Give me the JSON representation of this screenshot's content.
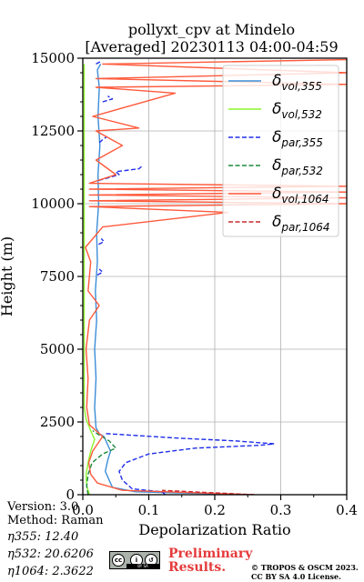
{
  "title_line1": "pollyxt_cpv at Mindelo",
  "title_line2": "[Averaged] 20230113 04:00-04:59",
  "footer": {
    "version": "Version: 3.0",
    "method": "Method: Raman",
    "eta355": "η355:  12.40",
    "eta532": "η532: 20.6206",
    "eta1064": "η1064: 2.3622",
    "preliminary": "Preliminary Results.",
    "copyright_line1": "© TROPOS & OSCM 2023.",
    "copyright_line2": "CC BY SA 4.0 License."
  },
  "cc_logo": {
    "badge1": "cc",
    "badge2": "i",
    "badge3": "↺",
    "strip": "BY  SA"
  },
  "chart_data": {
    "type": "line",
    "xlabel": "Depolarization Ratio",
    "ylabel": "Height (m)",
    "xlim": [
      0,
      0.4
    ],
    "ylim": [
      0,
      15000
    ],
    "xticks": [
      0.0,
      0.1,
      0.2,
      0.3,
      0.4
    ],
    "xtick_labels": [
      "0.0",
      "0.1",
      "0.2",
      "0.3",
      "0.4"
    ],
    "yticks": [
      0,
      2500,
      5000,
      7500,
      10000,
      12500,
      15000
    ],
    "ytick_labels": [
      "0",
      "2500",
      "5000",
      "7500",
      "10000",
      "12500",
      "15000"
    ],
    "grid": true,
    "legend_position": "upper-right",
    "series": [
      {
        "name": "δvol,355",
        "base": "δ",
        "sub": "vol,355",
        "color": "#3c8dd8",
        "dash": "solid",
        "points": [
          [
            0.255,
            0
          ],
          [
            0.08,
            100
          ],
          [
            0.045,
            250
          ],
          [
            0.04,
            500
          ],
          [
            0.034,
            800
          ],
          [
            0.038,
            1200
          ],
          [
            0.042,
            1500
          ],
          [
            0.032,
            2000
          ],
          [
            0.025,
            2100
          ],
          [
            0.02,
            2300
          ],
          [
            0.018,
            3000
          ],
          [
            0.02,
            4000
          ],
          [
            0.018,
            5000
          ],
          [
            0.021,
            6000
          ],
          [
            0.019,
            7000
          ],
          [
            0.022,
            8000
          ],
          [
            0.021,
            9000
          ],
          [
            0.024,
            10000
          ],
          [
            0.023,
            11000
          ],
          [
            0.026,
            12000
          ],
          [
            0.023,
            13000
          ],
          [
            0.025,
            14000
          ],
          [
            0.022,
            14600
          ],
          [
            0.027,
            14800
          ]
        ]
      },
      {
        "name": "δvol,532",
        "base": "δ",
        "sub": "vol,532",
        "color": "#8cf52a",
        "dash": "solid",
        "points": [
          [
            0.01,
            0
          ],
          [
            0.006,
            300
          ],
          [
            0.005,
            700
          ],
          [
            0.008,
            1100
          ],
          [
            0.012,
            1500
          ],
          [
            0.018,
            1900
          ],
          [
            0.012,
            2200
          ],
          [
            0.005,
            2600
          ],
          [
            0.002,
            3000
          ],
          [
            0.002,
            6000
          ],
          [
            0.002,
            9000
          ],
          [
            0.002,
            12000
          ],
          [
            0.002,
            14800
          ]
        ]
      },
      {
        "name": "δpar,355",
        "base": "δ",
        "sub": "par,355",
        "color": "#1f2ee8",
        "dash": "dashed",
        "points": [
          [
            0.125,
            0
          ],
          [
            0.12,
            100
          ],
          [
            0.075,
            200
          ],
          [
            0.06,
            500
          ],
          [
            0.055,
            800
          ],
          [
            0.065,
            1100
          ],
          [
            0.1,
            1400
          ],
          [
            0.17,
            1600
          ],
          [
            0.27,
            1700
          ],
          [
            0.29,
            1750
          ],
          [
            0.23,
            1850
          ],
          [
            0.14,
            1950
          ],
          [
            0.07,
            2050
          ],
          [
            0.035,
            2100
          ]
        ],
        "segments": [
          [
            [
              0.024,
              8600
            ],
            [
              0.032,
              8700
            ],
            [
              0.028,
              8800
            ]
          ],
          [
            [
              0.022,
              7550
            ],
            [
              0.03,
              7650
            ],
            [
              0.025,
              7750
            ]
          ],
          [
            [
              0.024,
              10800
            ],
            [
              0.04,
              10900
            ],
            [
              0.055,
              11000
            ],
            [
              0.05,
              11100
            ],
            [
              0.085,
              11200
            ],
            [
              0.09,
              11300
            ]
          ],
          [
            [
              0.025,
              12100
            ],
            [
              0.03,
              12200
            ],
            [
              0.036,
              12300
            ]
          ],
          [
            [
              0.03,
              13500
            ],
            [
              0.045,
              13600
            ],
            [
              0.038,
              13700
            ]
          ],
          [
            [
              0.02,
              14800
            ],
            [
              0.028,
              14900
            ]
          ]
        ]
      },
      {
        "name": "δpar,532",
        "base": "δ",
        "sub": "par,532",
        "color": "#1d8a3c",
        "dash": "dashed",
        "points": [
          [
            0.008,
            0
          ],
          [
            0.006,
            300
          ],
          [
            0.008,
            700
          ],
          [
            0.014,
            1100
          ],
          [
            0.03,
            1400
          ],
          [
            0.05,
            1600
          ],
          [
            0.04,
            1850
          ],
          [
            0.025,
            2050
          ],
          [
            0.015,
            2200
          ]
        ]
      },
      {
        "name": "δvol,1064",
        "base": "δ",
        "sub": "vol,1064",
        "color": "#ff5a3c",
        "dash": "solid",
        "points": [
          [
            0.26,
            0
          ],
          [
            0.06,
            150
          ],
          [
            0.022,
            400
          ],
          [
            0.012,
            700
          ],
          [
            0.009,
            1100
          ],
          [
            0.015,
            1500
          ],
          [
            0.03,
            2000
          ],
          [
            0.01,
            2400
          ],
          [
            0.006,
            3000
          ],
          [
            0.008,
            4000
          ],
          [
            0.005,
            5000
          ],
          [
            0.01,
            6000
          ],
          [
            0.025,
            6500
          ],
          [
            0.008,
            7000
          ],
          [
            0.012,
            8000
          ],
          [
            0.004,
            8500
          ],
          [
            0.03,
            9200
          ],
          [
            0.22,
            9700
          ],
          [
            0.01,
            9900
          ],
          [
            0.4,
            10000
          ],
          [
            0.01,
            10100
          ],
          [
            0.4,
            10200
          ],
          [
            0.01,
            10300
          ],
          [
            0.4,
            10400
          ],
          [
            0.01,
            10500
          ],
          [
            0.4,
            10600
          ],
          [
            0.01,
            10700
          ],
          [
            0.05,
            11000
          ],
          [
            0.02,
            11500
          ],
          [
            0.06,
            12000
          ],
          [
            0.02,
            12500
          ],
          [
            0.085,
            12600
          ],
          [
            0.015,
            13000
          ],
          [
            0.14,
            13800
          ],
          [
            0.02,
            14000
          ],
          [
            0.4,
            14100
          ],
          [
            0.02,
            14300
          ],
          [
            0.4,
            14500
          ],
          [
            0.03,
            14800
          ],
          [
            0.4,
            14950
          ]
        ]
      },
      {
        "name": "δpar,1064",
        "base": "δ",
        "sub": "par,1064",
        "color": "#c8282d",
        "dash": "dashed",
        "points": [
          [
            0.26,
            0
          ],
          [
            0.12,
            150
          ]
        ]
      }
    ]
  }
}
